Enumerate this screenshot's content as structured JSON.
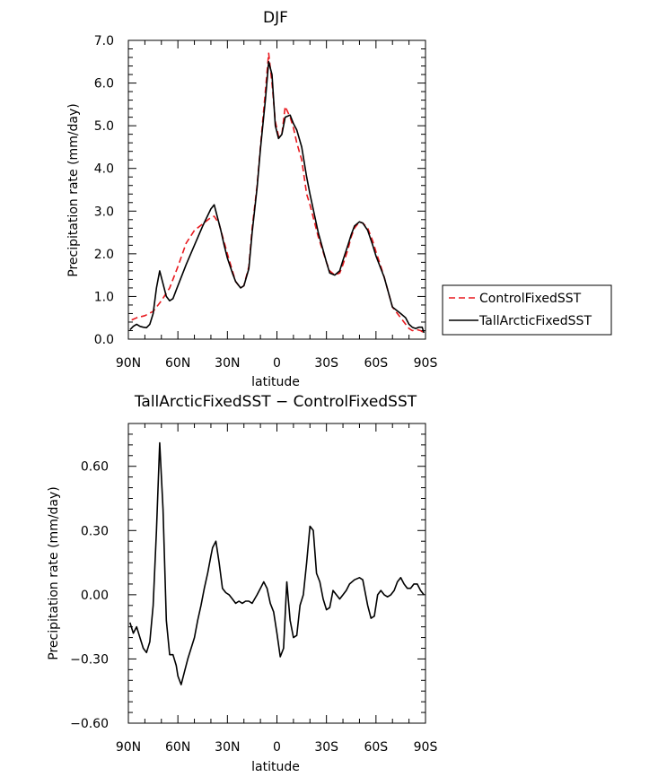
{
  "chart_data": [
    {
      "type": "line",
      "title": "DJF",
      "xlabel": "latitude",
      "ylabel": "Precipitation rate (mm/day)",
      "xlim": [
        90,
        -90
      ],
      "ylim": [
        0,
        7
      ],
      "xticks": [
        90,
        60,
        30,
        0,
        -30,
        -60,
        -90
      ],
      "xticklabels": [
        "90N",
        "60N",
        "30N",
        "0",
        "30S",
        "60S",
        "90S"
      ],
      "yticks": [
        0,
        1,
        2,
        3,
        4,
        5,
        6,
        7
      ],
      "yticklabels": [
        "0.0",
        "1.0",
        "2.0",
        "3.0",
        "4.0",
        "5.0",
        "6.0",
        "7.0"
      ],
      "legend_position": "right",
      "series": [
        {
          "name": "ControlFixedSST",
          "color": "#e8191e",
          "dash": "dashed",
          "x": [
            88,
            85,
            80,
            75,
            70,
            65,
            60,
            55,
            50,
            45,
            40,
            38,
            35,
            30,
            27,
            25,
            22,
            20,
            17,
            15,
            12,
            10,
            7,
            5,
            3,
            1,
            -1,
            -3,
            -5,
            -8,
            -10,
            -12,
            -15,
            -18,
            -20,
            -25,
            -30,
            -32,
            -35,
            -38,
            -40,
            -43,
            -45,
            -47,
            -50,
            -52,
            -55,
            -58,
            -60,
            -63,
            -65,
            -70,
            -75,
            -78,
            -80,
            -82,
            -85,
            -87,
            -89
          ],
          "values": [
            0.45,
            0.5,
            0.55,
            0.65,
            0.9,
            1.2,
            1.7,
            2.25,
            2.55,
            2.7,
            2.85,
            2.88,
            2.7,
            2.0,
            1.6,
            1.35,
            1.2,
            1.25,
            1.7,
            2.6,
            3.6,
            4.5,
            5.8,
            6.7,
            6.0,
            5.1,
            4.75,
            4.8,
            5.45,
            5.2,
            4.95,
            4.6,
            4.2,
            3.4,
            3.15,
            2.4,
            1.8,
            1.6,
            1.5,
            1.55,
            1.75,
            2.1,
            2.4,
            2.6,
            2.75,
            2.72,
            2.6,
            2.3,
            2.05,
            1.7,
            1.45,
            0.75,
            0.5,
            0.35,
            0.25,
            0.2,
            0.22,
            0.2,
            0.15
          ]
        },
        {
          "name": "TallArcticFixedSST",
          "color": "#000000",
          "dash": "solid",
          "x": [
            89,
            87,
            85,
            83,
            81,
            79,
            77,
            75,
            73,
            71,
            69,
            67,
            65,
            63,
            61,
            59,
            57,
            55,
            50,
            45,
            40,
            38,
            36,
            34,
            32,
            30,
            27,
            25,
            22,
            20,
            17,
            15,
            12,
            10,
            7,
            5,
            3,
            1,
            -1,
            -3,
            -5,
            -8,
            -10,
            -12,
            -15,
            -18,
            -20,
            -25,
            -30,
            -32,
            -35,
            -38,
            -40,
            -43,
            -45,
            -47,
            -50,
            -52,
            -55,
            -58,
            -60,
            -63,
            -65,
            -70,
            -75,
            -78,
            -80,
            -82,
            -84,
            -86,
            -88,
            -89
          ],
          "values": [
            0.22,
            0.3,
            0.35,
            0.3,
            0.28,
            0.27,
            0.35,
            0.6,
            1.2,
            1.6,
            1.3,
            1.0,
            0.9,
            0.95,
            1.15,
            1.35,
            1.55,
            1.75,
            2.2,
            2.65,
            3.05,
            3.15,
            2.85,
            2.55,
            2.2,
            1.9,
            1.55,
            1.35,
            1.2,
            1.25,
            1.65,
            2.5,
            3.55,
            4.45,
            5.6,
            6.5,
            6.2,
            5.0,
            4.7,
            4.8,
            5.2,
            5.25,
            5.05,
            4.9,
            4.5,
            3.8,
            3.4,
            2.5,
            1.8,
            1.55,
            1.5,
            1.6,
            1.85,
            2.2,
            2.45,
            2.65,
            2.75,
            2.72,
            2.55,
            2.2,
            1.95,
            1.65,
            1.45,
            0.75,
            0.6,
            0.5,
            0.35,
            0.28,
            0.25,
            0.28,
            0.28,
            0.15
          ]
        }
      ]
    },
    {
      "type": "line",
      "title": "TallArcticFixedSST − ControlFixedSST",
      "xlabel": "latitude",
      "ylabel": "Precipitation rate (mm/day)",
      "xlim": [
        90,
        -90
      ],
      "ylim": [
        -0.6,
        0.8
      ],
      "xticks": [
        90,
        60,
        30,
        0,
        -30,
        -60,
        -90
      ],
      "xticklabels": [
        "90N",
        "60N",
        "30N",
        "0",
        "30S",
        "60S",
        "90S"
      ],
      "yticks": [
        -0.6,
        -0.3,
        0.0,
        0.3,
        0.6
      ],
      "yticklabels": [
        "−0.60",
        "−0.30",
        "0.00",
        "0.30",
        "0.60"
      ],
      "series": [
        {
          "name": "TallArcticFixedSST − ControlFixedSST",
          "color": "#000000",
          "dash": "solid",
          "x": [
            89,
            87,
            85,
            83,
            81,
            79,
            77,
            75,
            73,
            71,
            69,
            67,
            65,
            63,
            61,
            60,
            58,
            56,
            54,
            52,
            50,
            48,
            46,
            44,
            42,
            40,
            39,
            37,
            35,
            33,
            31,
            29,
            27,
            25,
            23,
            21,
            19,
            17,
            15,
            12,
            10,
            8,
            6,
            4,
            2,
            0,
            -2,
            -4,
            -6,
            -8,
            -10,
            -12,
            -14,
            -16,
            -18,
            -20,
            -22,
            -24,
            -26,
            -28,
            -30,
            -32,
            -34,
            -36,
            -38,
            -40,
            -42,
            -44,
            -47,
            -50,
            -52,
            -55,
            -57,
            -59,
            -61,
            -63,
            -65,
            -67,
            -69,
            -71,
            -73,
            -75,
            -77,
            -79,
            -81,
            -83,
            -85,
            -87,
            -89
          ],
          "values": [
            -0.13,
            -0.18,
            -0.15,
            -0.2,
            -0.25,
            -0.27,
            -0.22,
            -0.05,
            0.3,
            0.71,
            0.4,
            -0.12,
            -0.28,
            -0.28,
            -0.33,
            -0.38,
            -0.42,
            -0.36,
            -0.3,
            -0.25,
            -0.2,
            -0.12,
            -0.05,
            0.03,
            0.1,
            0.18,
            0.22,
            0.25,
            0.15,
            0.03,
            0.01,
            0.0,
            -0.02,
            -0.04,
            -0.03,
            -0.04,
            -0.03,
            -0.03,
            -0.04,
            0.0,
            0.03,
            0.06,
            0.03,
            -0.04,
            -0.08,
            -0.18,
            -0.29,
            -0.25,
            0.06,
            -0.12,
            -0.2,
            -0.19,
            -0.05,
            0.0,
            0.15,
            0.32,
            0.3,
            0.1,
            0.06,
            -0.02,
            -0.07,
            -0.06,
            0.02,
            0.0,
            -0.02,
            0.0,
            0.02,
            0.05,
            0.07,
            0.08,
            0.07,
            -0.05,
            -0.11,
            -0.1,
            0.0,
            0.02,
            0.0,
            -0.01,
            0.0,
            0.02,
            0.06,
            0.08,
            0.05,
            0.03,
            0.03,
            0.05,
            0.05,
            0.02,
            0.0
          ]
        }
      ]
    }
  ]
}
